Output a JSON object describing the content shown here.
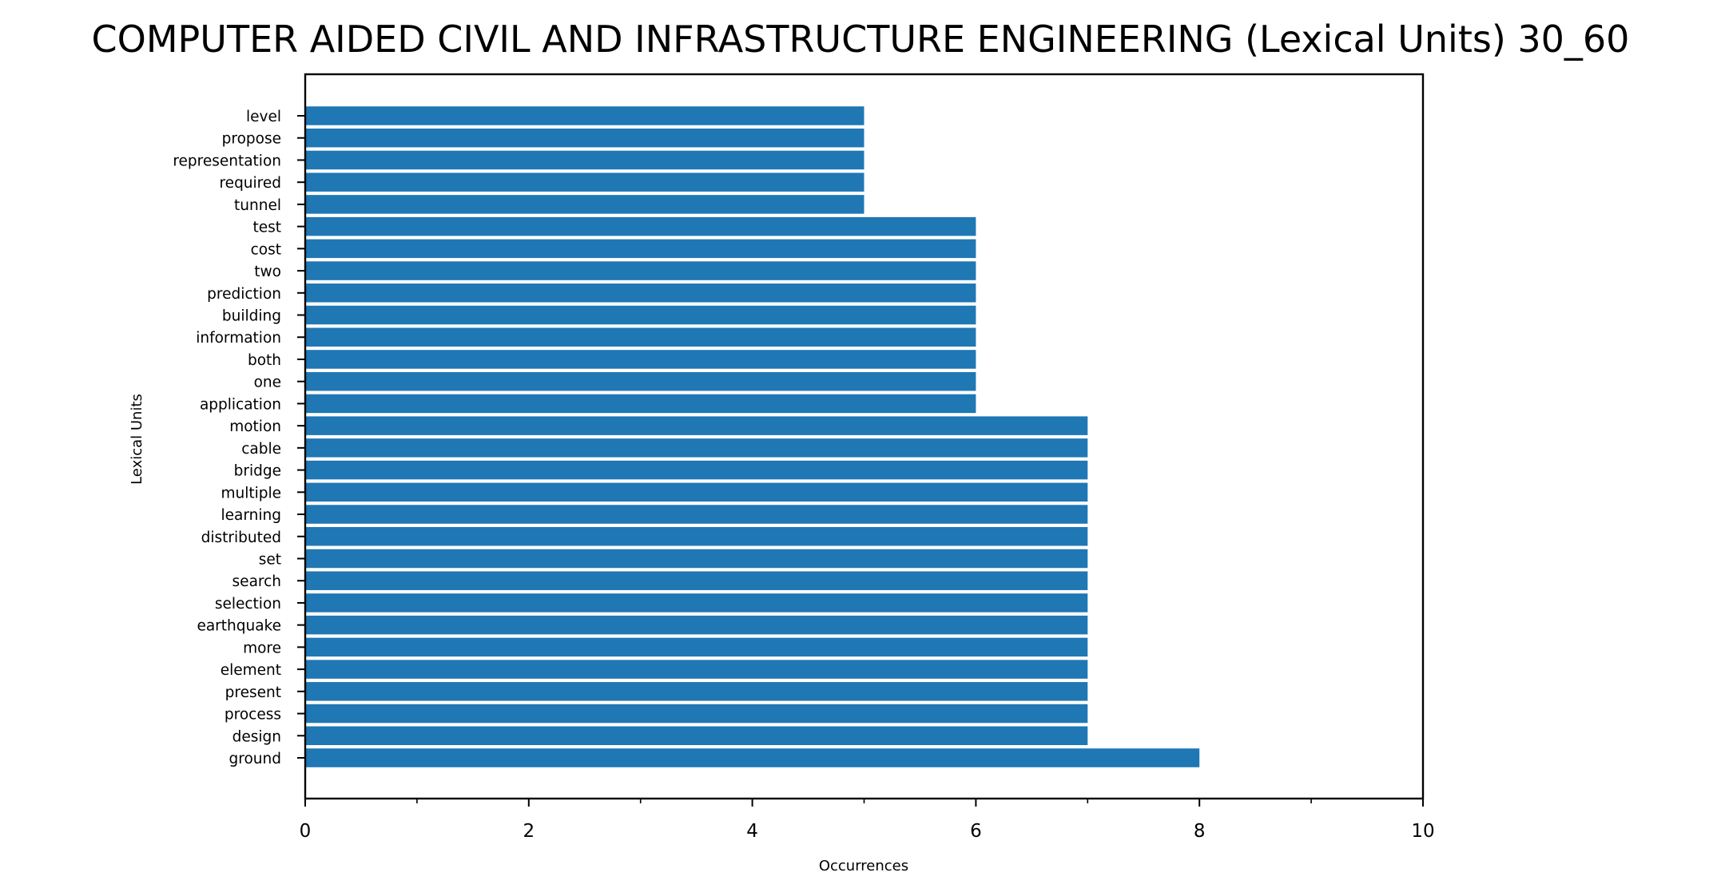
{
  "chart_data": {
    "type": "bar",
    "orientation": "horizontal",
    "title": "COMPUTER AIDED CIVIL AND INFRASTRUCTURE ENGINEERING (Lexical Units) 30_60",
    "xlabel": "Occurrences",
    "ylabel": "Lexical Units",
    "xlim": [
      0,
      10
    ],
    "xticks": [
      "0",
      "2",
      "4",
      "6",
      "8",
      "10"
    ],
    "xminor_ticks": [
      1,
      3,
      5,
      7,
      9
    ],
    "grid": false,
    "legend": "none",
    "bar_color": "#1f77b4",
    "categories": [
      "ground",
      "design",
      "process",
      "present",
      "element",
      "more",
      "earthquake",
      "selection",
      "search",
      "set",
      "distributed",
      "learning",
      "multiple",
      "bridge",
      "cable",
      "motion",
      "application",
      "one",
      "both",
      "information",
      "building",
      "prediction",
      "two",
      "cost",
      "test",
      "tunnel",
      "required",
      "representation",
      "propose",
      "level"
    ],
    "values": [
      8,
      7,
      7,
      7,
      7,
      7,
      7,
      7,
      7,
      7,
      7,
      7,
      7,
      7,
      7,
      7,
      6,
      6,
      6,
      6,
      6,
      6,
      6,
      6,
      6,
      5,
      5,
      5,
      5,
      5
    ]
  }
}
